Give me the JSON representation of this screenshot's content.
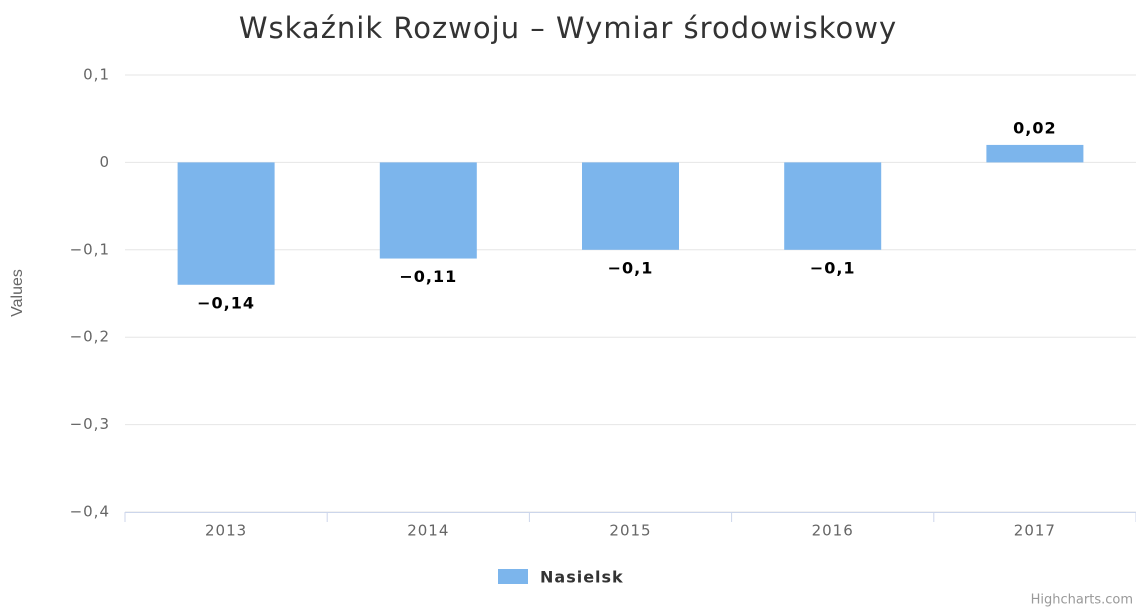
{
  "chart_data": {
    "type": "bar",
    "title": "Wskaźnik Rozwoju – Wymiar środowiskowy",
    "y_axis_label": "Values",
    "categories": [
      "2013",
      "2014",
      "2015",
      "2016",
      "2017"
    ],
    "series": [
      {
        "name": "Nasielsk",
        "color": "#7cb5ec",
        "values": [
          -0.14,
          -0.11,
          -0.1,
          -0.1,
          0.02
        ],
        "value_labels": [
          "−0,14",
          "−0,11",
          "−0,1",
          "−0,1",
          "0,02"
        ]
      }
    ],
    "ylim": [
      -0.4,
      0.1
    ],
    "yticks": [
      {
        "value": 0.1,
        "label": "0,1"
      },
      0,
      {
        "value": -0.1,
        "label": "−0,1"
      },
      {
        "value": -0.2,
        "label": "−0,2"
      },
      {
        "value": -0.3,
        "label": "−0,3"
      },
      {
        "value": -0.4,
        "label": "−0,4"
      }
    ],
    "grid": true,
    "legend": "bottom",
    "credits": "Highcharts.com"
  }
}
